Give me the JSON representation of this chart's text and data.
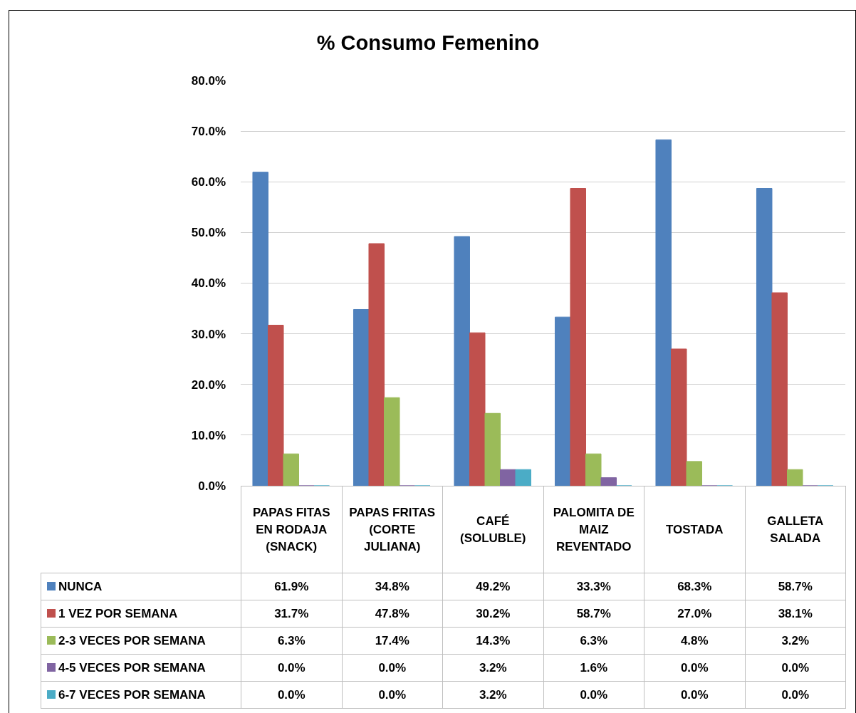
{
  "chart_data": {
    "type": "bar",
    "title": "% Consumo Femenino",
    "categories": [
      "PAPAS FITAS EN RODAJA (SNACK)",
      "PAPAS FRITAS (CORTE JULIANA)",
      "CAFÉ (SOLUBLE)",
      "PALOMITA DE MAIZ REVENTADO",
      "TOSTADA",
      "GALLETA SALADA"
    ],
    "series": [
      {
        "name": "NUNCA",
        "color": "#4f81bd",
        "values": [
          61.9,
          34.8,
          49.2,
          33.3,
          68.3,
          58.7
        ],
        "value_labels": [
          "61.9%",
          "34.8%",
          "49.2%",
          "33.3%",
          "68.3%",
          "58.7%"
        ]
      },
      {
        "name": "1 VEZ POR SEMANA",
        "color": "#c0504d",
        "values": [
          31.7,
          47.8,
          30.2,
          58.7,
          27.0,
          38.1
        ],
        "value_labels": [
          "31.7%",
          "47.8%",
          "30.2%",
          "58.7%",
          "27.0%",
          "38.1%"
        ]
      },
      {
        "name": "2-3 VECES POR SEMANA",
        "color": "#9bbb59",
        "values": [
          6.3,
          17.4,
          14.3,
          6.3,
          4.8,
          3.2
        ],
        "value_labels": [
          "6.3%",
          "17.4%",
          "14.3%",
          "6.3%",
          "4.8%",
          "3.2%"
        ]
      },
      {
        "name": "4-5 VECES POR SEMANA",
        "color": "#8064a2",
        "values": [
          0.0,
          0.0,
          3.2,
          1.6,
          0.0,
          0.0
        ],
        "value_labels": [
          "0.0%",
          "0.0%",
          "3.2%",
          "1.6%",
          "0.0%",
          "0.0%"
        ]
      },
      {
        "name": "6-7 VECES POR SEMANA",
        "color": "#4bacc6",
        "values": [
          0.0,
          0.0,
          3.2,
          0.0,
          0.0,
          0.0
        ],
        "value_labels": [
          "0.0%",
          "0.0%",
          "3.2%",
          "0.0%",
          "0.0%",
          "0.0%"
        ]
      }
    ],
    "ylim": [
      0,
      80
    ],
    "yticks": [
      {
        "value": 0,
        "label": "0.0%"
      },
      {
        "value": 10,
        "label": "10.0%"
      },
      {
        "value": 20,
        "label": "20.0%"
      },
      {
        "value": 30,
        "label": "30.0%"
      },
      {
        "value": 40,
        "label": "40.0%"
      },
      {
        "value": 50,
        "label": "50.0%"
      },
      {
        "value": 60,
        "label": "60.0%"
      },
      {
        "value": 70,
        "label": "70.0%"
      },
      {
        "value": 80,
        "label": "80.0%"
      }
    ],
    "grid": "y",
    "legend": "bottom left"
  }
}
